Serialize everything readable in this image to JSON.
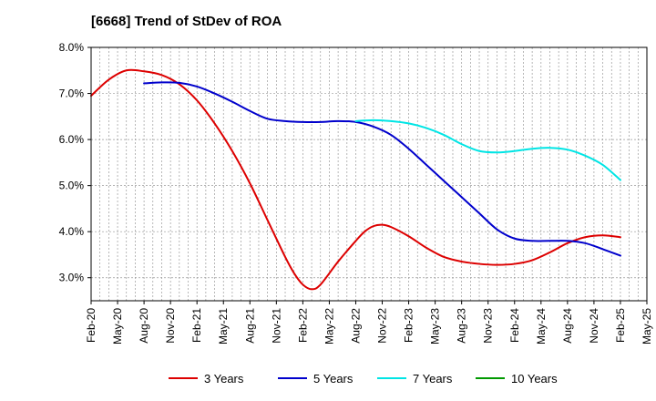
{
  "chart_data": {
    "type": "line",
    "title": "[6668]  Trend of StDev of ROA",
    "xlabel": "",
    "ylabel": "",
    "x_ticks": [
      "Feb-20",
      "May-20",
      "Aug-20",
      "Nov-20",
      "Feb-21",
      "May-21",
      "Aug-21",
      "Nov-21",
      "Feb-22",
      "May-22",
      "Aug-22",
      "Nov-22",
      "Feb-23",
      "May-23",
      "Aug-23",
      "Nov-23",
      "Feb-24",
      "May-24",
      "Aug-24",
      "Nov-24",
      "Feb-25",
      "May-25"
    ],
    "y_ticks": [
      "3.0%",
      "4.0%",
      "5.0%",
      "6.0%",
      "7.0%",
      "8.0%"
    ],
    "ylim": [
      2.5,
      8.0
    ],
    "grid": "vertical dashed",
    "legend_position": "bottom",
    "series": [
      {
        "name": "3 Years",
        "color": "#dd0000",
        "x": [
          "Feb-20",
          "Apr-20",
          "Jun-20",
          "Aug-20",
          "Oct-20",
          "Dec-20",
          "Feb-21",
          "Apr-21",
          "Jun-21",
          "Aug-21",
          "Oct-21",
          "Dec-21",
          "Jan-22",
          "Feb-22",
          "Mar-22",
          "Apr-22",
          "Jun-22",
          "Aug-22",
          "Sep-22",
          "Oct-22",
          "Nov-22",
          "Dec-22",
          "Feb-23",
          "Apr-23",
          "Jun-23",
          "Aug-23",
          "Oct-23",
          "Dec-23",
          "Feb-24",
          "Apr-24",
          "Jun-24",
          "Aug-24",
          "Oct-24",
          "Dec-24",
          "Feb-25"
        ],
        "values": [
          6.95,
          7.3,
          7.5,
          7.48,
          7.4,
          7.2,
          6.85,
          6.35,
          5.75,
          5.05,
          4.25,
          3.45,
          3.1,
          2.85,
          2.75,
          2.85,
          3.35,
          3.8,
          4.0,
          4.12,
          4.15,
          4.1,
          3.9,
          3.65,
          3.45,
          3.35,
          3.3,
          3.28,
          3.3,
          3.38,
          3.55,
          3.75,
          3.88,
          3.92,
          3.88
        ]
      },
      {
        "name": "5 Years",
        "color": "#0000cc",
        "x": [
          "Feb-20",
          "Apr-20",
          "Jun-20",
          "Aug-20",
          "Oct-20",
          "Dec-20",
          "Feb-21",
          "Apr-21",
          "Jun-21",
          "Aug-21",
          "Oct-21",
          "Dec-21",
          "Feb-22",
          "Apr-22",
          "Jun-22",
          "Aug-22",
          "Oct-22",
          "Dec-22",
          "Feb-23",
          "Apr-23",
          "Jun-23",
          "Aug-23",
          "Oct-23",
          "Dec-23",
          "Feb-24",
          "Apr-24",
          "Jun-24",
          "Aug-24",
          "Oct-24",
          "Dec-24",
          "Feb-25"
        ],
        "values": [
          null,
          null,
          null,
          7.22,
          7.24,
          7.23,
          7.15,
          7.0,
          6.82,
          6.62,
          6.45,
          6.4,
          6.38,
          6.38,
          6.4,
          6.38,
          6.28,
          6.1,
          5.8,
          5.45,
          5.1,
          4.75,
          4.4,
          4.05,
          3.85,
          3.8,
          3.8,
          3.8,
          3.75,
          3.62,
          3.48
        ]
      },
      {
        "name": "7 Years",
        "color": "#00e5e5",
        "x": [
          "Aug-22",
          "Oct-22",
          "Dec-22",
          "Feb-23",
          "Apr-23",
          "Jun-23",
          "Aug-23",
          "Oct-23",
          "Dec-23",
          "Feb-24",
          "Apr-24",
          "Jun-24",
          "Aug-24",
          "Oct-24",
          "Dec-24",
          "Feb-25"
        ],
        "values": [
          6.4,
          6.42,
          6.4,
          6.35,
          6.25,
          6.1,
          5.9,
          5.75,
          5.72,
          5.75,
          5.8,
          5.82,
          5.78,
          5.65,
          5.45,
          5.12
        ]
      },
      {
        "name": "10 Years",
        "color": "#009900",
        "x": [],
        "values": []
      }
    ]
  }
}
